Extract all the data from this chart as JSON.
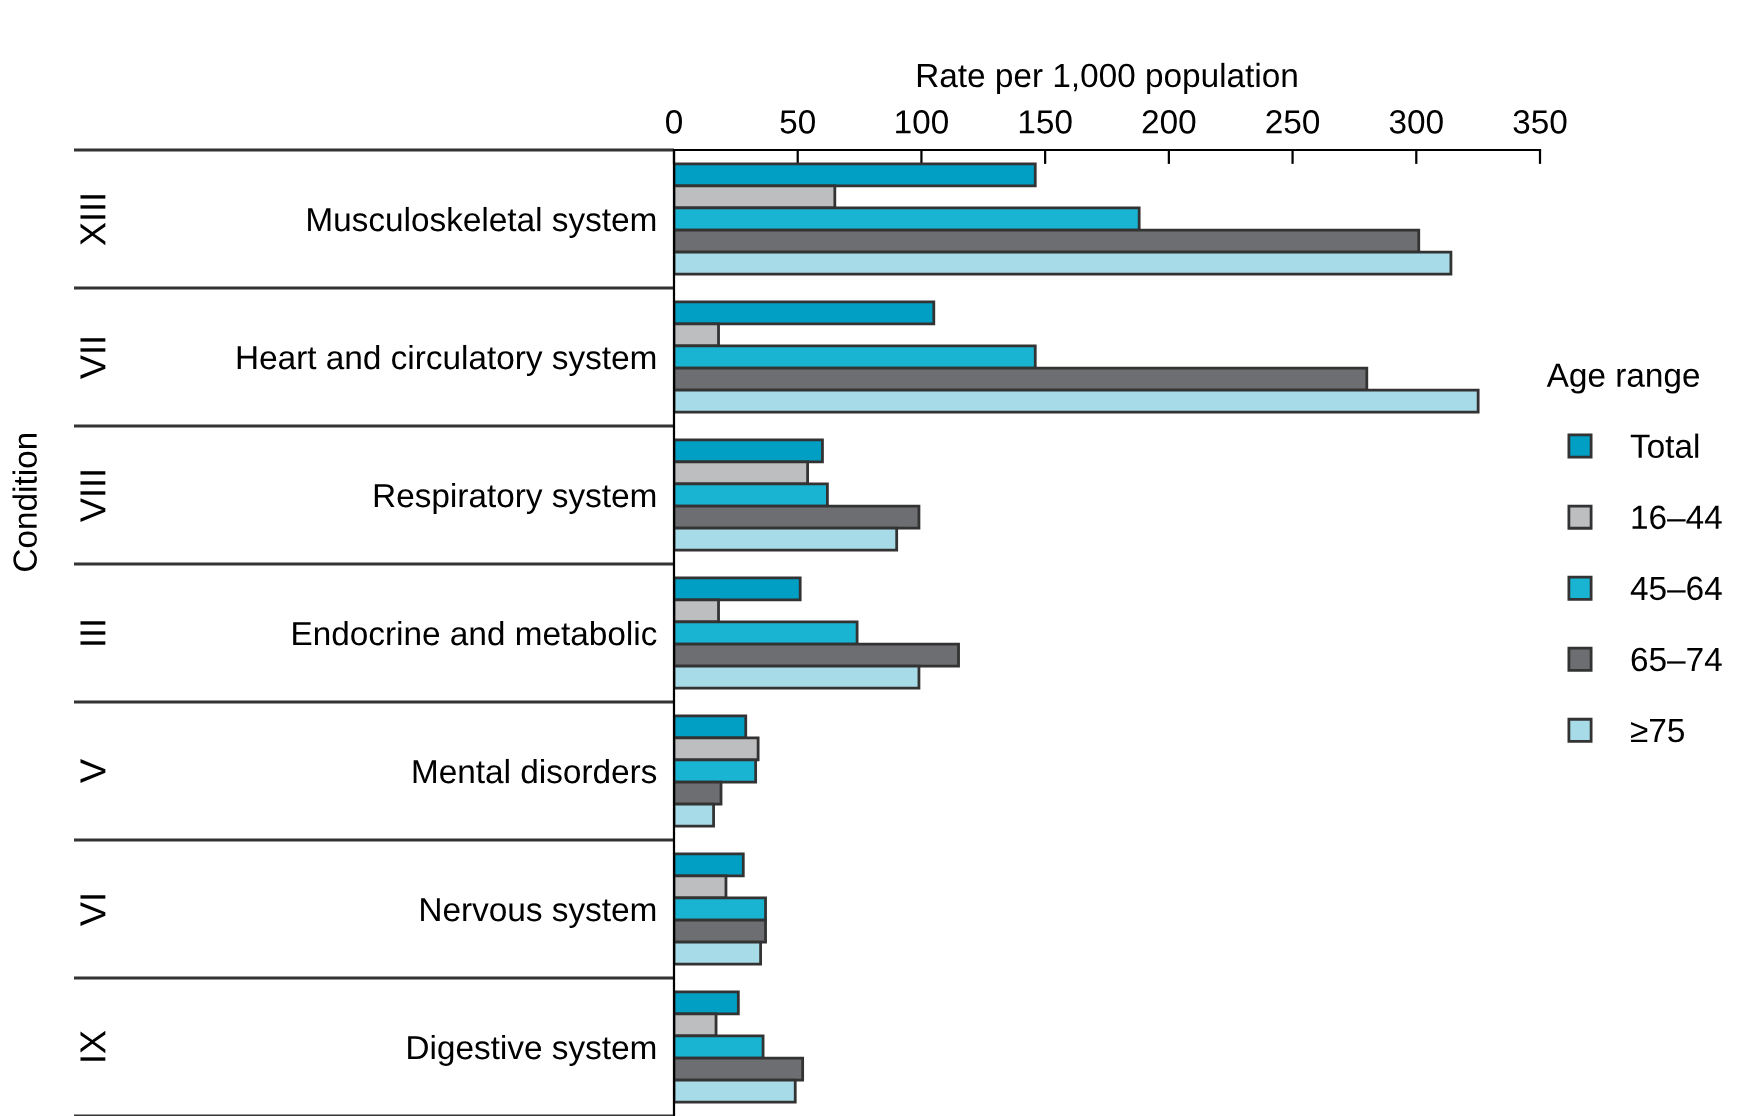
{
  "chart_data": {
    "type": "bar",
    "orientation": "horizontal",
    "xlabel": "Rate per 1,000 population",
    "legend_title": "Age range",
    "categories": [
      "Musculoskeletal system",
      "Heart and circulatory system",
      "Respiratory system",
      "Endocrine and metabolic",
      "Mental disorders",
      "Nervous system",
      "Digestive system"
    ],
    "annotations": [
      "XIII",
      "VII",
      "VIII",
      "III",
      "V",
      "VI",
      "IX",
      "Condition"
    ],
    "series": [
      {
        "name": "Total",
        "color": "#009fc3",
        "values": [
          146,
          105,
          60,
          51,
          29,
          28,
          26
        ]
      },
      {
        "name": "16–44",
        "color": "#bcbec0",
        "values": [
          65,
          18,
          54,
          18,
          34,
          21,
          17
        ]
      },
      {
        "name": "45–64",
        "color": "#1ab4d3",
        "values": [
          188,
          146,
          62,
          74,
          33,
          37,
          36
        ]
      },
      {
        "name": "65–74",
        "color": "#6d6e71",
        "values": [
          301,
          280,
          99,
          115,
          19,
          37,
          52
        ]
      },
      {
        "name": "≥75",
        "color": "#a8dbe8",
        "values": [
          314,
          325,
          90,
          99,
          16,
          35,
          49
        ]
      }
    ],
    "xlim": [
      0,
      350
    ],
    "xticks": [
      0,
      50,
      100,
      150,
      200,
      250,
      300,
      350
    ],
    "legend": "right",
    "marker": "square",
    "grid": false
  }
}
